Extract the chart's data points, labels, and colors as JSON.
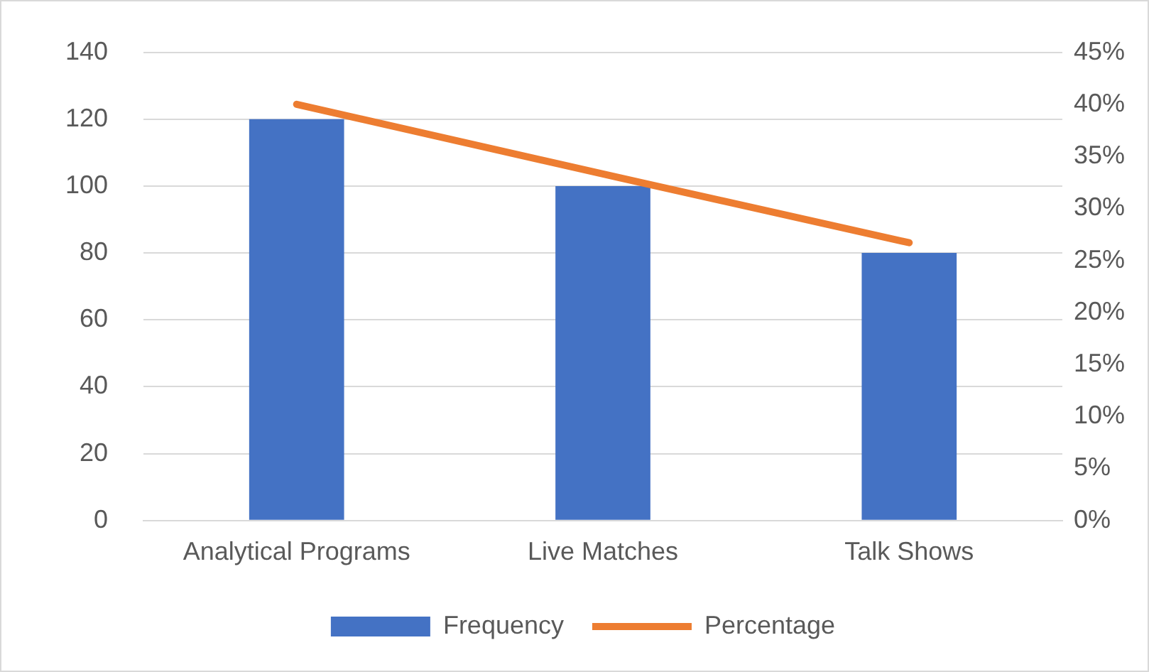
{
  "chart_data": {
    "type": "bar",
    "categories": [
      "Analytical Programs",
      "Live Matches",
      "Talk Shows"
    ],
    "series": [
      {
        "name": "Frequency",
        "color": "#4472c4",
        "values": [
          120,
          100,
          80
        ]
      },
      {
        "name": "Percentage",
        "type": "line",
        "axis": "y2",
        "color": "#ed7d31",
        "values": [
          40,
          33.3,
          26.7
        ],
        "marker": "none"
      }
    ],
    "ylim": [
      0,
      140
    ],
    "yticks": [
      0,
      20,
      40,
      60,
      80,
      100,
      120,
      140
    ],
    "y2lim": [
      0,
      45
    ],
    "y2ticks": [
      {
        "value": 0,
        "label": "0%"
      },
      {
        "value": 5,
        "label": "5%"
      },
      {
        "value": 10,
        "label": "10%"
      },
      {
        "value": 15,
        "label": "15%"
      },
      {
        "value": 20,
        "label": "20%"
      },
      {
        "value": 25,
        "label": "25%"
      },
      {
        "value": 30,
        "label": "30%"
      },
      {
        "value": 35,
        "label": "35%"
      },
      {
        "value": 40,
        "label": "40%"
      },
      {
        "value": 45,
        "label": "45%"
      }
    ],
    "grid": "y",
    "legend": "bottom"
  }
}
